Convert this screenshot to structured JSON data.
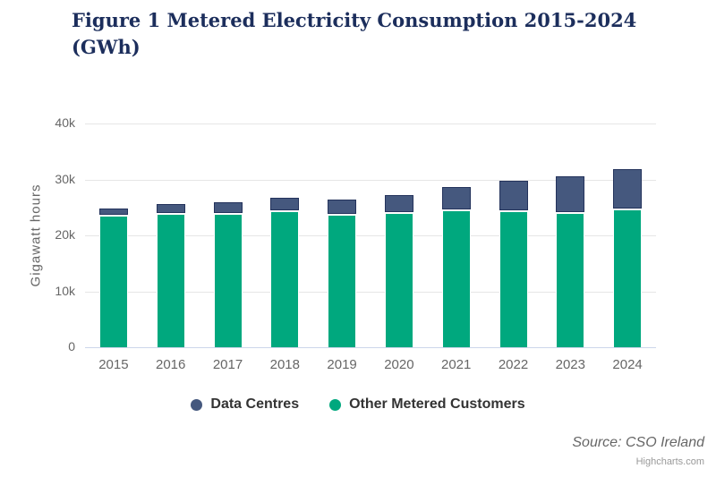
{
  "title": {
    "line1": "Figure 1 Metered Electricity Consumption 2015-2024",
    "line2": "(GWh)"
  },
  "source": "Source: CSO Ireland",
  "credits": "Highcharts.com",
  "colors": {
    "title": "#1C2E5C",
    "data_centres": "#45587E",
    "data_centres_border": "#24335C",
    "other_metered": "#00A87E",
    "gridline": "#E6E6E6",
    "axis_line": "#CCD6EB",
    "axis_text": "#666666",
    "legend_text": "#333333"
  },
  "chart_data": {
    "type": "bar",
    "stacked": true,
    "orientation": "vertical",
    "title": "Figure 1 Metered Electricity Consumption 2015-2024 (GWh)",
    "xlabel": "",
    "ylabel": "Gigawatt hours",
    "ylim": [
      0,
      40000
    ],
    "grid": true,
    "legend_position": "bottom",
    "categories": [
      "2015",
      "2016",
      "2017",
      "2018",
      "2019",
      "2020",
      "2021",
      "2022",
      "2023",
      "2024"
    ],
    "yticks": [
      {
        "value": 0,
        "label": "0"
      },
      {
        "value": 10000,
        "label": "10k"
      },
      {
        "value": 20000,
        "label": "20k"
      },
      {
        "value": 30000,
        "label": "30k"
      },
      {
        "value": 40000,
        "label": "40k"
      }
    ],
    "series": [
      {
        "name": "Data Centres",
        "color": "#45587E",
        "border_color": "#24335C",
        "values": [
          1237,
          1513,
          1846,
          2314,
          2645,
          3019,
          3986,
          5268,
          6334,
          6967
        ]
      },
      {
        "name": "Other Metered Customers",
        "color": "#00A87E",
        "border_color": "#FFFFFF",
        "values": [
          23453,
          23861,
          23902,
          24276,
          23615,
          23947,
          24545,
          24393,
          24066,
          24701
        ]
      }
    ]
  }
}
